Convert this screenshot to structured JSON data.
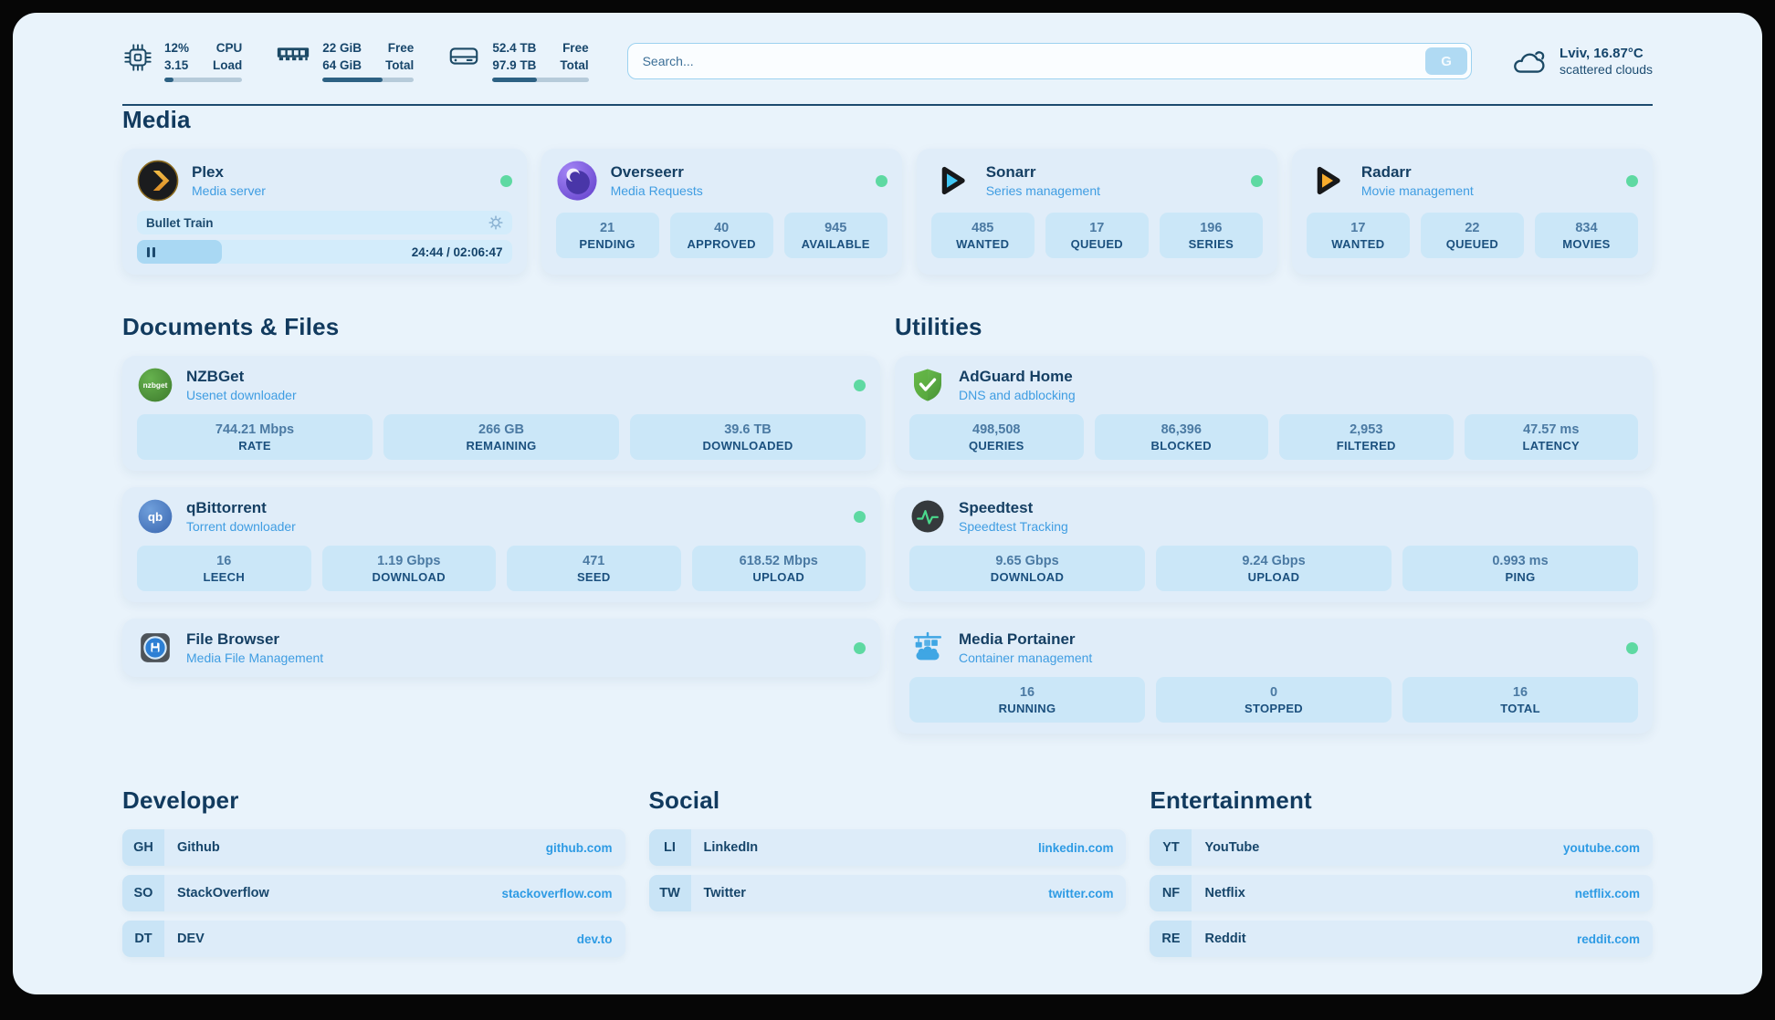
{
  "colors": {
    "online_dot": "#5ed9a2",
    "link": "#2e9be4",
    "navy": "#17466b",
    "accent": "#3f9de2"
  },
  "icons": {
    "cpu": "cpu-chip",
    "memory": "memory-module",
    "storage": "hard-drive",
    "weather": "cloud",
    "plex": "plex-chevron-circle",
    "overseerr": "overseerr-eye",
    "sonarr": "play-triangle-blue",
    "radarr": "play-triangle-orange",
    "nzbget": "nzbget-green-globe",
    "qbittorrent": "qb-blue-circle",
    "filebrowser": "floppy-disk-tile",
    "adguard": "green-shield-check",
    "speedtest": "pulse-circle",
    "portainer": "docker-crane-containers",
    "player_settings": "gear",
    "player_state": "pause-bars"
  },
  "topbar": {
    "cpu": {
      "value1": "12%",
      "value2": "3.15",
      "label1": "CPU",
      "label2": "Load",
      "progress": 12
    },
    "ram": {
      "value1": "22 GiB",
      "value2": "64 GiB",
      "label1": "Free",
      "label2": "Total",
      "progress": 66
    },
    "disk": {
      "value1": "52.4 TB",
      "value2": "97.9 TB",
      "label1": "Free",
      "label2": "Total",
      "progress": 46
    },
    "search": {
      "placeholder": "Search...",
      "button_label": "G"
    },
    "weather": {
      "headline": "Lviv, 16.87°C",
      "condition": "scattered clouds"
    }
  },
  "sections": {
    "media": "Media",
    "documents": "Documents & Files",
    "utilities": "Utilities",
    "developer": "Developer",
    "social": "Social",
    "entertainment": "Entertainment"
  },
  "apps": {
    "plex": {
      "name": "Plex",
      "description": "Media server",
      "online": true,
      "player": {
        "title": "Bullet Train",
        "time": "24:44 / 02:06:47",
        "progress": 20
      }
    },
    "overseerr": {
      "name": "Overseerr",
      "description": "Media Requests",
      "online": true,
      "stats": [
        {
          "value": "21",
          "label": "PENDING"
        },
        {
          "value": "40",
          "label": "APPROVED"
        },
        {
          "value": "945",
          "label": "AVAILABLE"
        }
      ]
    },
    "sonarr": {
      "name": "Sonarr",
      "description": "Series management",
      "online": true,
      "stats": [
        {
          "value": "485",
          "label": "WANTED"
        },
        {
          "value": "17",
          "label": "QUEUED"
        },
        {
          "value": "196",
          "label": "SERIES"
        }
      ]
    },
    "radarr": {
      "name": "Radarr",
      "description": "Movie management",
      "online": true,
      "stats": [
        {
          "value": "17",
          "label": "WANTED"
        },
        {
          "value": "22",
          "label": "QUEUED"
        },
        {
          "value": "834",
          "label": "MOVIES"
        }
      ]
    },
    "nzbget": {
      "name": "NZBGet",
      "description": "Usenet downloader",
      "online": true,
      "stats": [
        {
          "value": "744.21 Mbps",
          "label": "RATE"
        },
        {
          "value": "266 GB",
          "label": "REMAINING"
        },
        {
          "value": "39.6 TB",
          "label": "DOWNLOADED"
        }
      ]
    },
    "qbittorrent": {
      "name": "qBittorrent",
      "description": "Torrent downloader",
      "online": true,
      "stats": [
        {
          "value": "16",
          "label": "LEECH"
        },
        {
          "value": "1.19 Gbps",
          "label": "DOWNLOAD"
        },
        {
          "value": "471",
          "label": "SEED"
        },
        {
          "value": "618.52 Mbps",
          "label": "UPLOAD"
        }
      ]
    },
    "filebrowser": {
      "name": "File Browser",
      "description": "Media File Management",
      "online": true
    },
    "adguard": {
      "name": "AdGuard Home",
      "description": "DNS and adblocking",
      "online": false,
      "stats": [
        {
          "value": "498,508",
          "label": "QUERIES"
        },
        {
          "value": "86,396",
          "label": "BLOCKED"
        },
        {
          "value": "2,953",
          "label": "FILTERED"
        },
        {
          "value": "47.57 ms",
          "label": "LATENCY"
        }
      ]
    },
    "speedtest": {
      "name": "Speedtest",
      "description": "Speedtest Tracking",
      "online": false,
      "stats": [
        {
          "value": "9.65 Gbps",
          "label": "DOWNLOAD"
        },
        {
          "value": "9.24 Gbps",
          "label": "UPLOAD"
        },
        {
          "value": "0.993 ms",
          "label": "PING"
        }
      ]
    },
    "portainer": {
      "name": "Media Portainer",
      "description": "Container management",
      "online": true,
      "stats": [
        {
          "value": "16",
          "label": "RUNNING"
        },
        {
          "value": "0",
          "label": "STOPPED"
        },
        {
          "value": "16",
          "label": "TOTAL"
        }
      ]
    }
  },
  "bookmarks": {
    "developer": [
      {
        "abbr": "GH",
        "name": "Github",
        "url": "github.com"
      },
      {
        "abbr": "SO",
        "name": "StackOverflow",
        "url": "stackoverflow.com"
      },
      {
        "abbr": "DT",
        "name": "DEV",
        "url": "dev.to"
      }
    ],
    "social": [
      {
        "abbr": "LI",
        "name": "LinkedIn",
        "url": "linkedin.com"
      },
      {
        "abbr": "TW",
        "name": "Twitter",
        "url": "twitter.com"
      }
    ],
    "entertainment": [
      {
        "abbr": "YT",
        "name": "YouTube",
        "url": "youtube.com"
      },
      {
        "abbr": "NF",
        "name": "Netflix",
        "url": "netflix.com"
      },
      {
        "abbr": "RE",
        "name": "Reddit",
        "url": "reddit.com"
      }
    ]
  }
}
